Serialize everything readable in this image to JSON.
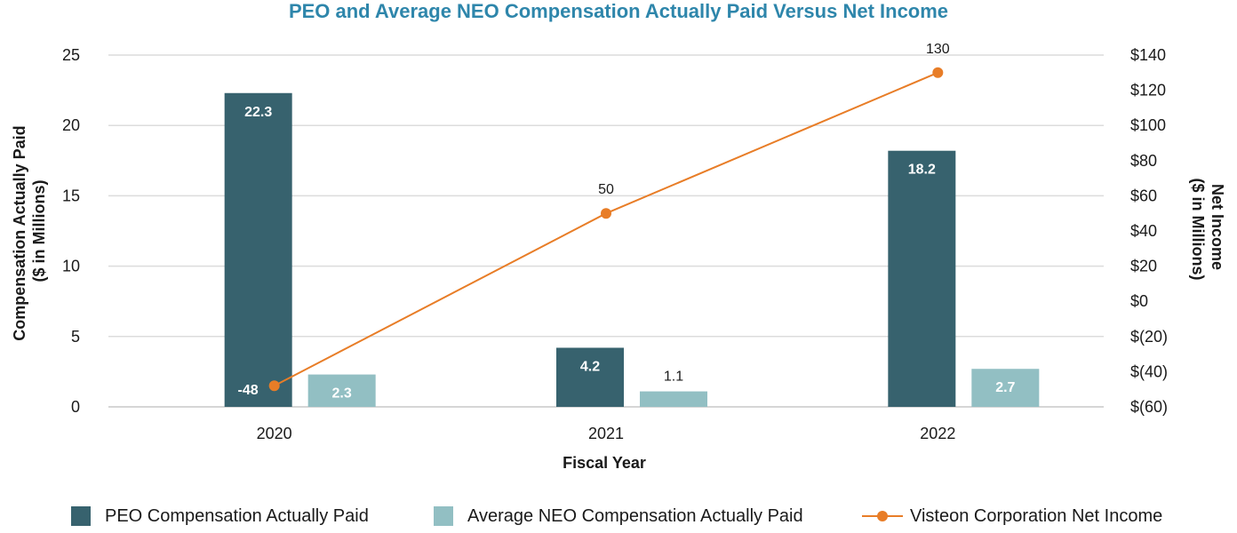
{
  "chart_data": {
    "type": "bar",
    "title": "PEO and Average NEO Compensation Actually Paid Versus Net Income",
    "xlabel": "Fiscal Year",
    "ylabel": "Compensation Actually Paid ($ in Millions)",
    "ylabel_lines": [
      "Compensation Actually Paid",
      "($ in Millions)"
    ],
    "y2label": "Net Income ($ in Millions)",
    "y2label_lines": [
      "Net Income",
      "($ in Millions)"
    ],
    "categories": [
      "2020",
      "2021",
      "2022"
    ],
    "ylim": [
      0,
      25
    ],
    "y_ticks": [
      0,
      5,
      10,
      15,
      20,
      25
    ],
    "y_tick_labels": [
      "0",
      "5",
      "10",
      "15",
      "20",
      "25"
    ],
    "y2lim": [
      -60,
      140
    ],
    "y2_ticks": [
      -60,
      -40,
      -20,
      0,
      20,
      40,
      60,
      80,
      100,
      120,
      140
    ],
    "y2_tick_labels": [
      "$(60)",
      "$(40)",
      "$(20)",
      "$0",
      "$20",
      "$40",
      "$60",
      "$80",
      "$100",
      "$120",
      "$140"
    ],
    "grid": true,
    "legend_position": "bottom",
    "series": [
      {
        "name": "PEO Compensation Actually Paid",
        "kind": "bar",
        "axis": "left",
        "color": "#37626e",
        "values": [
          22.3,
          4.2,
          18.2
        ],
        "labels": [
          "22.3",
          "4.2",
          "18.2"
        ]
      },
      {
        "name": "Average NEO Compensation Actually Paid",
        "kind": "bar",
        "axis": "left",
        "color": "#92bfc3",
        "values": [
          2.3,
          1.1,
          2.7
        ],
        "labels": [
          "2.3",
          "1.1",
          "2.7"
        ]
      },
      {
        "name": "Visteon Corporation Net Income",
        "kind": "line",
        "axis": "right",
        "color": "#e87d27",
        "values": [
          -48,
          50,
          130
        ],
        "labels": [
          "-48",
          "50",
          "130"
        ]
      }
    ]
  }
}
